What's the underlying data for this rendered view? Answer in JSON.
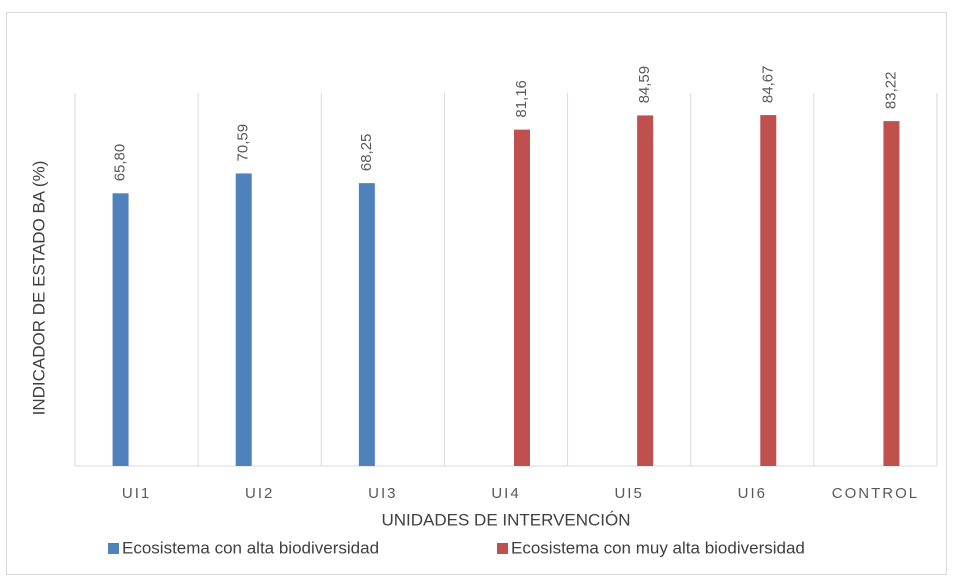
{
  "chart_data": {
    "type": "bar",
    "x_label": "UNIDADES DE INTERVENCIÓN",
    "y_label": "INDICADOR DE ESTADO BA (%)",
    "categories": [
      "UI1",
      "UI2",
      "UI3",
      "UI4",
      "UI5",
      "UI6",
      "CONTROL"
    ],
    "series": [
      {
        "name": "Ecosistema con alta biodiversidad",
        "color": "#4f81bd",
        "values": [
          65.8,
          70.59,
          68.25,
          null,
          null,
          null,
          null
        ],
        "value_labels": [
          "65,80",
          "70,59",
          "68,25",
          null,
          null,
          null,
          null
        ]
      },
      {
        "name": "Ecosistema con muy alta biodiversidad",
        "color": "#c0504d",
        "values": [
          null,
          null,
          null,
          81.16,
          84.59,
          84.67,
          83.22
        ],
        "value_labels": [
          null,
          null,
          null,
          "81,16",
          "84,59",
          "84,67",
          "83,22"
        ]
      }
    ],
    "ylim": [
      0,
      90
    ],
    "legend": "bottom"
  }
}
